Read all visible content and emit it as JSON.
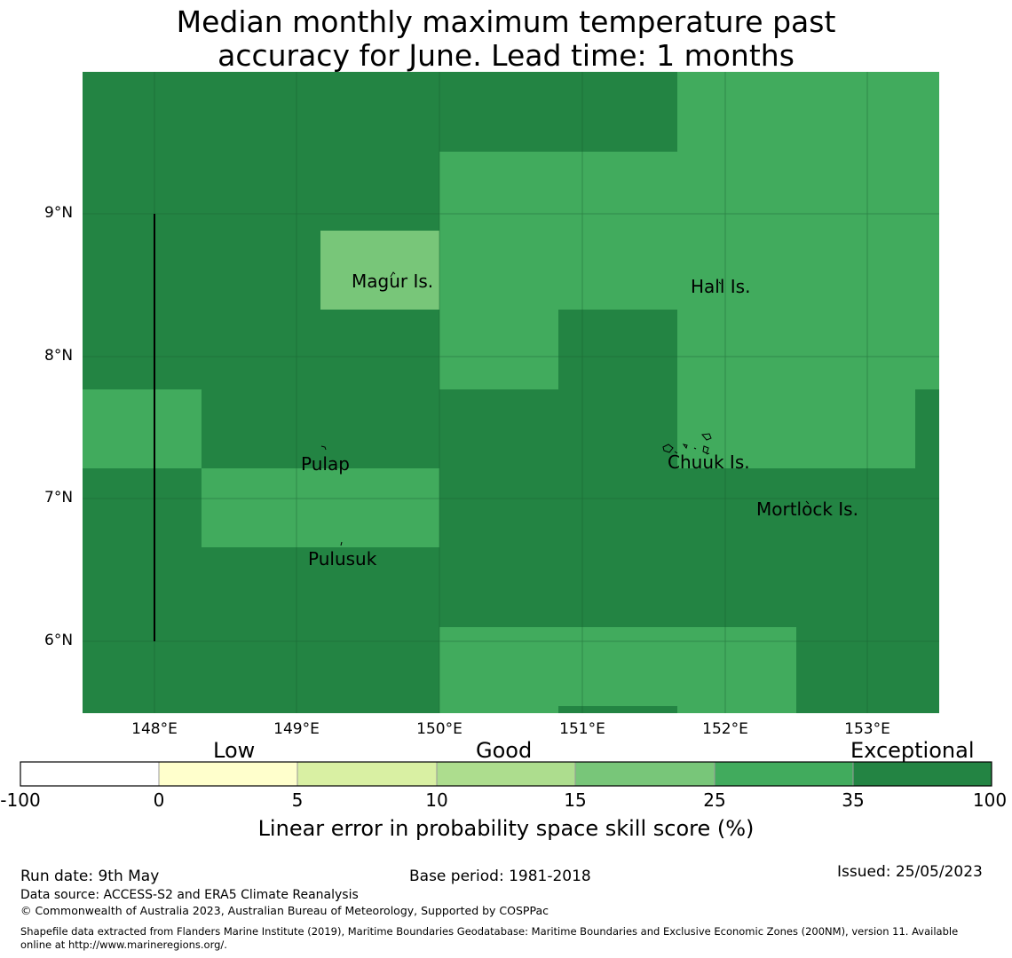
{
  "title_line1": "Median monthly maximum temperature past",
  "title_line2": "accuracy for June. Lead time: 1 months",
  "map": {
    "lat_labels": [
      "9°N",
      "8°N",
      "7°N",
      "6°N"
    ],
    "lon_labels": [
      "148°E",
      "149°E",
      "150°E",
      "151°E",
      "152°E",
      "153°E"
    ],
    "places": [
      {
        "name": "Magur Is."
      },
      {
        "name": "Hall Is."
      },
      {
        "name": "Pulap"
      },
      {
        "name": "Chuuk Is."
      },
      {
        "name": "Mortlock Is."
      },
      {
        "name": "Pulusuk"
      }
    ],
    "colors": {
      "exceptional": "#228844",
      "good_25_35": "#41ab5d",
      "good_15_25": "#78c679",
      "ocean_land_outline": "#000000"
    }
  },
  "colorbar": {
    "categories": [
      "Low",
      "Good",
      "Exceptional"
    ],
    "ticks": [
      "-100",
      "0",
      "5",
      "10",
      "15",
      "25",
      "35",
      "100"
    ],
    "colors": [
      "#ffffff",
      "#ffffcc",
      "#d9f0a3",
      "#addd8e",
      "#78c679",
      "#41ab5d",
      "#238443"
    ],
    "label": "Linear error in probability space skill score (%)"
  },
  "footer": {
    "run_date": "Run date: 9th May",
    "base_period": "Base period: 1981-2018",
    "issued": "Issued: 25/05/2023",
    "data_source": "Data source: ACCESS-S2 and ERA5 Climate Reanalysis",
    "copyright": "© Commonwealth of Australia 2023, Australian Bureau of Meteorology, Supported by COSPPac",
    "shapefile_line1": "Shapefile data extracted from Flanders Marine Institute (2019), Maritime Boundaries Geodatabase: Maritime Boundaries and Exclusive Economic Zones (200NM), version 11. Available",
    "shapefile_line2": "online at http://www.marineregions.org/."
  }
}
